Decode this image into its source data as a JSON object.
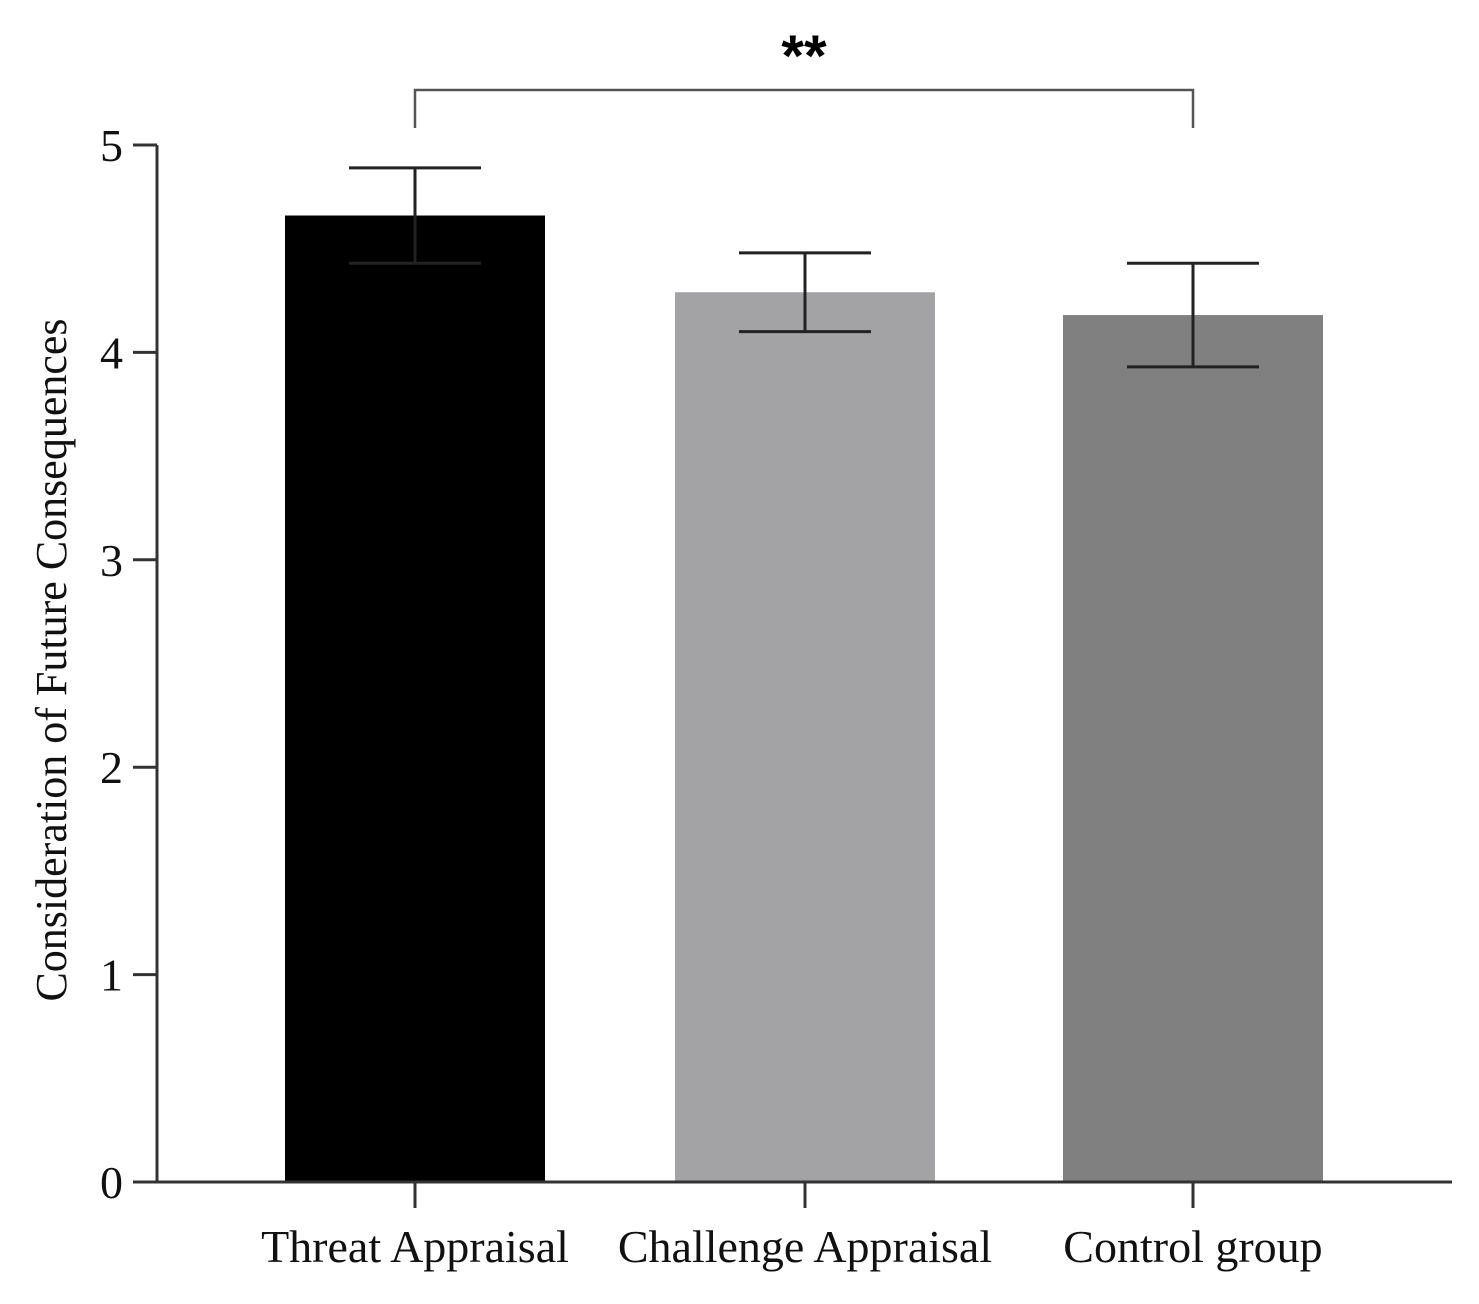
{
  "chart_data": {
    "type": "bar",
    "categories": [
      "Threat Appraisal",
      "Challenge Appraisal",
      "Control group"
    ],
    "values": [
      4.66,
      4.29,
      4.18
    ],
    "errors": [
      0.23,
      0.19,
      0.25
    ],
    "colors": [
      "#000000",
      "#a3a3a6",
      "#808080"
    ],
    "ylabel": "Consideration of Future Consequences",
    "ylim": [
      0,
      5
    ],
    "yticks": [
      "0",
      "1",
      "2",
      "3",
      "4",
      "5"
    ],
    "significance": {
      "from": 0,
      "to": 2,
      "label": "**"
    },
    "grid": false
  }
}
